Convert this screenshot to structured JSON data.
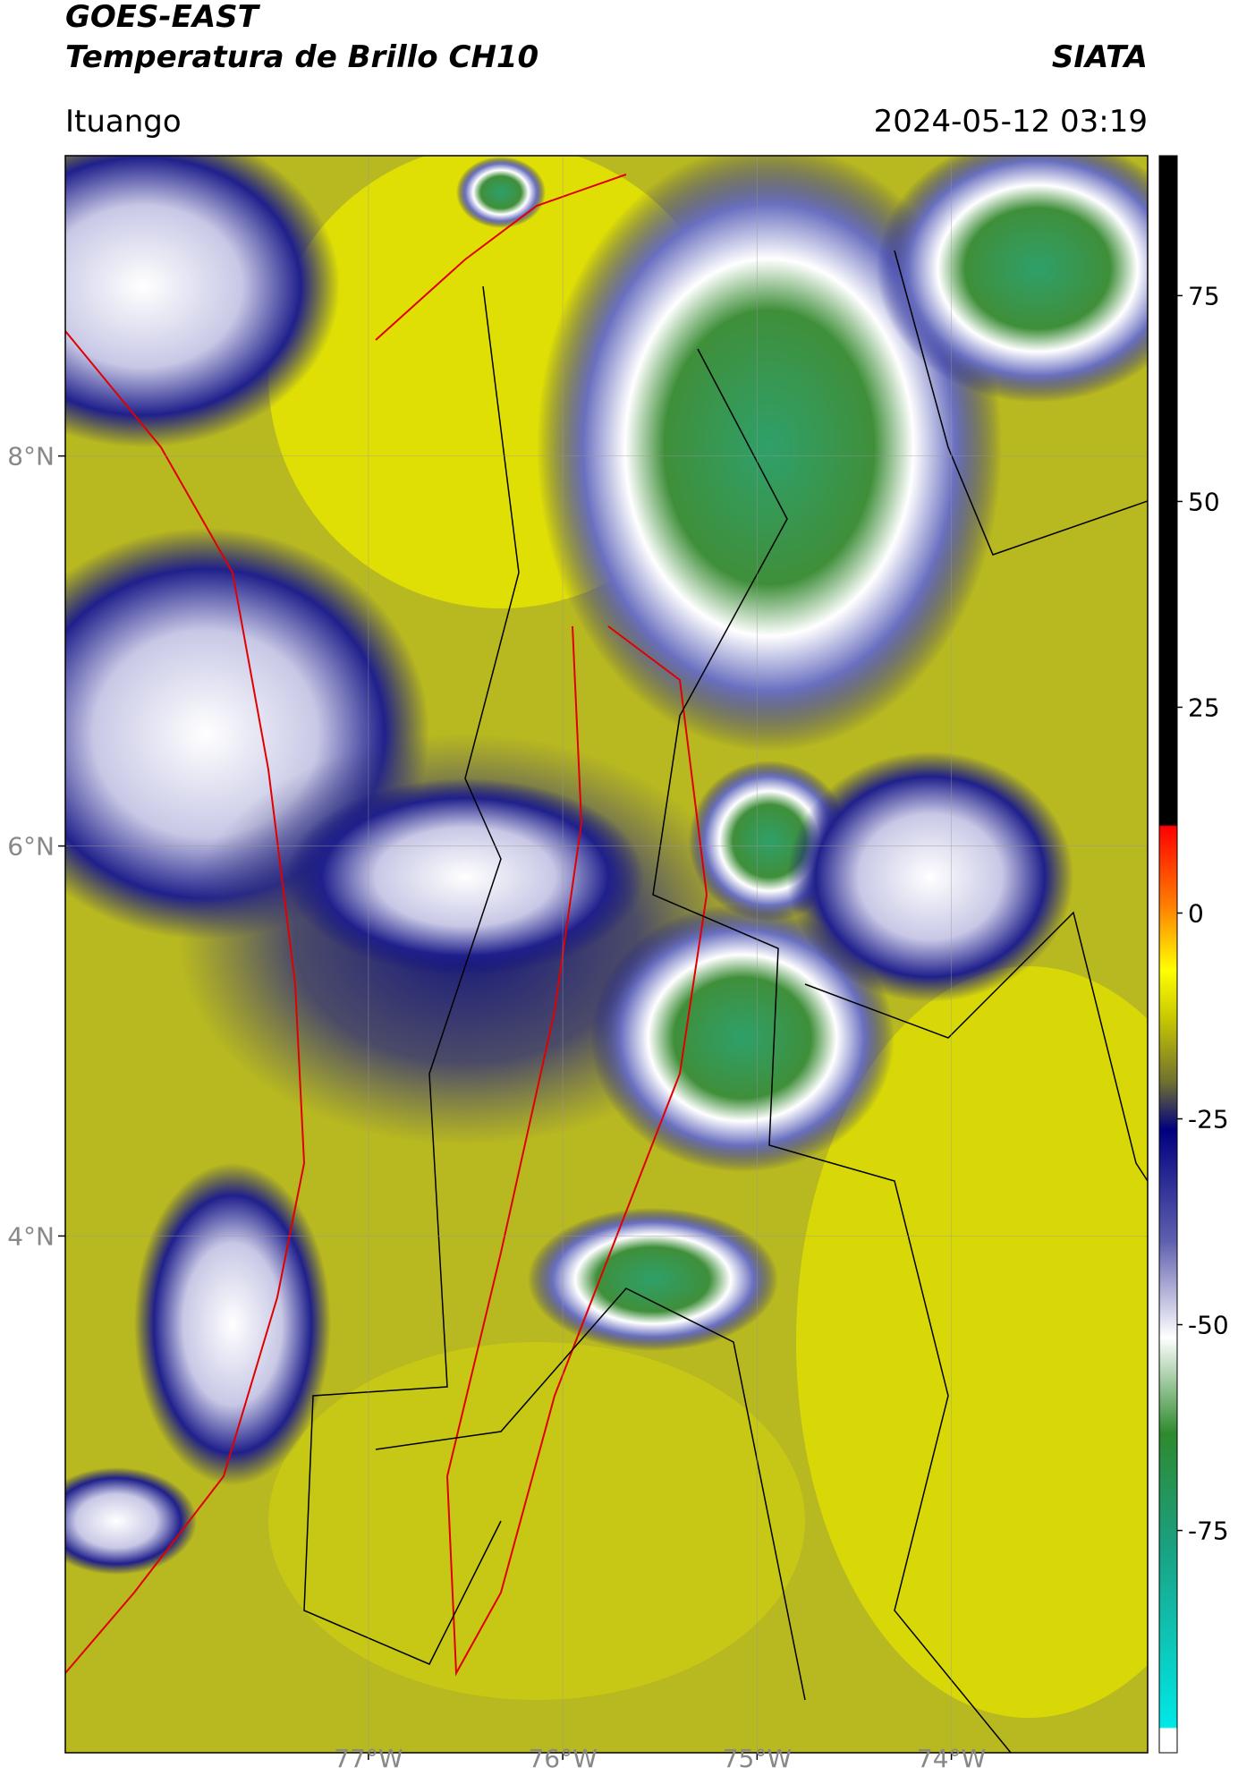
{
  "header": {
    "satellite": "GOES-EAST",
    "product": "Temperatura de Brillo CH10",
    "organization": "SIATA",
    "location": "Ituango",
    "datetime": "2024-05-12 03:19"
  },
  "map": {
    "lat_range": [
      1.35,
      9.54
    ],
    "lon_range": [
      -78.56,
      -72.99
    ],
    "lat_ticks": [
      {
        "value": 8,
        "label": "8°N"
      },
      {
        "value": 6,
        "label": "6°N"
      },
      {
        "value": 4,
        "label": "4°N"
      }
    ],
    "lon_ticks": [
      {
        "value": -77,
        "label": "77°W"
      },
      {
        "value": -76,
        "label": "76°W"
      },
      {
        "value": -75,
        "label": "75°W"
      },
      {
        "value": -74,
        "label": "74°W"
      }
    ]
  },
  "colorbar": {
    "lim": [
      -102,
      92
    ],
    "ticks": [
      75,
      50,
      25,
      0,
      -25,
      -50,
      -75
    ]
  }
}
